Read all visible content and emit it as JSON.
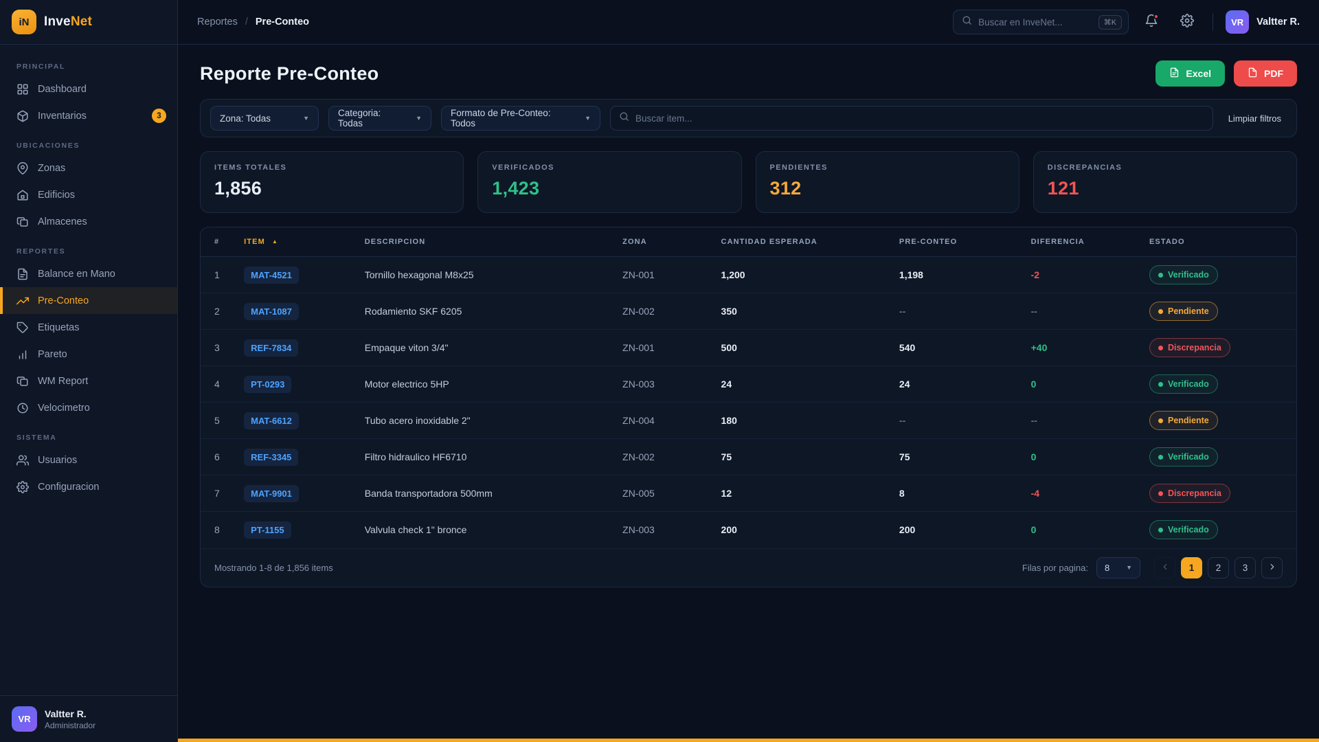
{
  "theme": {
    "accent": "#f6a71f",
    "green": "#2fc08a",
    "red": "#f25555",
    "blue": "#4da3ff"
  },
  "brand": {
    "logo_initials": "iN",
    "name_primary": "Inve",
    "name_accent": "Net"
  },
  "breadcrumb": {
    "section": "Reportes",
    "separator": "/",
    "current": "Pre-Conteo"
  },
  "topbar": {
    "search_placeholder": "Buscar en InveNet...",
    "shortcut": "⌘K",
    "user_initials": "VR",
    "user_name": "Valtter R."
  },
  "sidebar": {
    "sections": [
      {
        "title": "PRINCIPAL",
        "items": [
          {
            "id": "dashboard",
            "label": "Dashboard",
            "icon": "grid",
            "active": false
          },
          {
            "id": "inventarios",
            "label": "Inventarios",
            "icon": "box",
            "badge": "3",
            "active": false
          }
        ]
      },
      {
        "title": "UBICACIONES",
        "items": [
          {
            "id": "zonas",
            "label": "Zonas",
            "icon": "map-pin",
            "active": false
          },
          {
            "id": "edificios",
            "label": "Edificios",
            "icon": "building",
            "active": false
          },
          {
            "id": "almacenes",
            "label": "Almacenes",
            "icon": "layers",
            "active": false
          }
        ]
      },
      {
        "title": "REPORTES",
        "items": [
          {
            "id": "balance-en-mano",
            "label": "Balance en Mano",
            "icon": "file-text",
            "active": false
          },
          {
            "id": "pre-conteo",
            "label": "Pre-Conteo",
            "icon": "trend-up",
            "active": true
          },
          {
            "id": "etiquetas",
            "label": "Etiquetas",
            "icon": "tag",
            "active": false
          },
          {
            "id": "pareto",
            "label": "Pareto",
            "icon": "bar-chart",
            "active": false
          },
          {
            "id": "wm-report",
            "label": "WM Report",
            "icon": "layers",
            "active": false
          },
          {
            "id": "velocimetro",
            "label": "Velocimetro",
            "icon": "clock",
            "active": false
          }
        ]
      },
      {
        "title": "SISTEMA",
        "items": [
          {
            "id": "usuarios",
            "label": "Usuarios",
            "icon": "users",
            "active": false
          },
          {
            "id": "configuracion",
            "label": "Configuracion",
            "icon": "gear",
            "active": false
          }
        ]
      }
    ],
    "user": {
      "initials": "VR",
      "name": "Valtter R.",
      "role": "Administrador"
    }
  },
  "page": {
    "title": "Reporte Pre-Conteo",
    "excel_label": "Excel",
    "pdf_label": "PDF"
  },
  "filters": {
    "zona": "Zona: Todas",
    "categoria": "Categoria: Todas",
    "formato": "Formato de Pre-Conteo: Todos",
    "search_placeholder": "Buscar item...",
    "clear_label": "Limpiar filtros"
  },
  "stats": [
    {
      "id": "totales",
      "label": "ITEMS TOTALES",
      "value": "1,856",
      "color": "#e9eef6"
    },
    {
      "id": "verificados",
      "label": "VERIFICADOS",
      "value": "1,423",
      "color": "#2fc08a"
    },
    {
      "id": "pendientes",
      "label": "PENDIENTES",
      "value": "312",
      "color": "#f5a93c"
    },
    {
      "id": "discrepancias",
      "label": "DISCREPANCIAS",
      "value": "121",
      "color": "#f25555"
    }
  ],
  "table": {
    "sort_indicator": "▲",
    "columns": [
      {
        "label": "#",
        "sorted": false
      },
      {
        "label": "ITEM",
        "sorted": true
      },
      {
        "label": "DESCRIPCION",
        "sorted": false
      },
      {
        "label": "ZONA",
        "sorted": false
      },
      {
        "label": "CANTIDAD ESPERADA",
        "sorted": false
      },
      {
        "label": "PRE-CONTEO",
        "sorted": false
      },
      {
        "label": "DIFERENCIA",
        "sorted": false
      },
      {
        "label": "ESTADO",
        "sorted": false
      }
    ],
    "rows": [
      {
        "num": "1",
        "code": "MAT-4521",
        "description": "Tornillo hexagonal M8x25",
        "zone": "ZN-001",
        "expected": "1,200",
        "precount": "1,198",
        "difference": "-2",
        "diff_type": "neg",
        "status": "Verificado",
        "status_type": "verified"
      },
      {
        "num": "2",
        "code": "MAT-1087",
        "description": "Rodamiento SKF 6205",
        "zone": "ZN-002",
        "expected": "350",
        "precount": "--",
        "difference": "--",
        "diff_type": "none",
        "status": "Pendiente",
        "status_type": "pending"
      },
      {
        "num": "3",
        "code": "REF-7834",
        "description": "Empaque viton 3/4\"",
        "zone": "ZN-001",
        "expected": "500",
        "precount": "540",
        "difference": "+40",
        "diff_type": "pos",
        "status": "Discrepancia",
        "status_type": "discrepancy"
      },
      {
        "num": "4",
        "code": "PT-0293",
        "description": "Motor electrico 5HP",
        "zone": "ZN-003",
        "expected": "24",
        "precount": "24",
        "difference": "0",
        "diff_type": "pos",
        "status": "Verificado",
        "status_type": "verified"
      },
      {
        "num": "5",
        "code": "MAT-6612",
        "description": "Tubo acero inoxidable 2\"",
        "zone": "ZN-004",
        "expected": "180",
        "precount": "--",
        "difference": "--",
        "diff_type": "none",
        "status": "Pendiente",
        "status_type": "pending"
      },
      {
        "num": "6",
        "code": "REF-3345",
        "description": "Filtro hidraulico HF6710",
        "zone": "ZN-002",
        "expected": "75",
        "precount": "75",
        "difference": "0",
        "diff_type": "pos",
        "status": "Verificado",
        "status_type": "verified"
      },
      {
        "num": "7",
        "code": "MAT-9901",
        "description": "Banda transportadora 500mm",
        "zone": "ZN-005",
        "expected": "12",
        "precount": "8",
        "difference": "-4",
        "diff_type": "neg",
        "status": "Discrepancia",
        "status_type": "discrepancy"
      },
      {
        "num": "8",
        "code": "PT-1155",
        "description": "Valvula check 1\" bronce",
        "zone": "ZN-003",
        "expected": "200",
        "precount": "200",
        "difference": "0",
        "diff_type": "pos",
        "status": "Verificado",
        "status_type": "verified"
      }
    ]
  },
  "footer": {
    "showing": "Mostrando 1-8 de 1,856 items",
    "rows_per_page_label": "Filas por pagina:",
    "rows_per_page_value": "8",
    "pages": [
      "1",
      "2",
      "3"
    ],
    "current_page": "1"
  }
}
